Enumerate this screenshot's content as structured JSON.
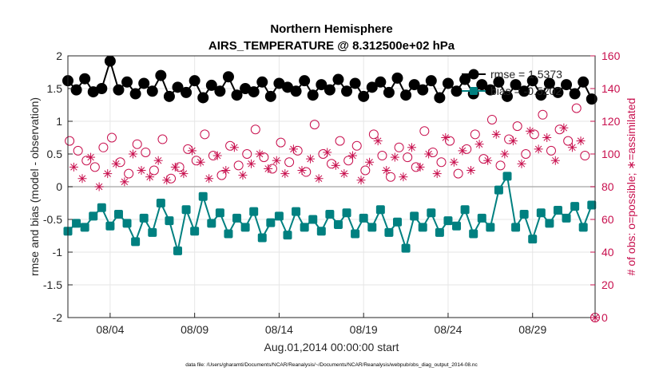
{
  "chart_data": {
    "type": "line",
    "title": "Northern Hemisphere",
    "subtitle": "AIRS_TEMPERATURE @ 8.312500e+02 hPa",
    "xlabel": "Aug.01,2014 00:00:00 start",
    "ylabel": "rmse and bias (model - observation)",
    "y2label": "# of obs: o=possible; ∗=assimilated",
    "footer": "data file: /Users/gharamti/Documents/NCAR/Reanalysis/~/Documents/NCAR/Reanalysis/webpub/obs_diag_output_2014-08.nc",
    "xlim": [
      1.5,
      32.7
    ],
    "ylim": [
      -2,
      2
    ],
    "y2lim": [
      0,
      160
    ],
    "yticks": [
      "-2",
      "-1.5",
      "-1",
      "-0.5",
      "0",
      "0.5",
      "1",
      "1.5",
      "2"
    ],
    "y2ticks": [
      "0",
      "20",
      "40",
      "60",
      "80",
      "100",
      "120",
      "140",
      "160"
    ],
    "xticks": [
      {
        "day": 4,
        "label": "08/04"
      },
      {
        "day": 9,
        "label": "08/09"
      },
      {
        "day": 14,
        "label": "08/14"
      },
      {
        "day": 19,
        "label": "08/19"
      },
      {
        "day": 24,
        "label": "08/24"
      },
      {
        "day": 29,
        "label": "08/29"
      }
    ],
    "legend": [
      {
        "label": "rmse = 1.5373",
        "color": "#000000",
        "marker": "circle"
      },
      {
        "label": "bias = -0.5202",
        "color": "#008080",
        "marker": "square"
      }
    ],
    "colors": {
      "rmse": "#000000",
      "bias": "#008080",
      "obs": "#c8104e",
      "zero_line": "#b3b3b3"
    },
    "series": [
      {
        "name": "rmse",
        "axis": "left",
        "x": [
          1.5,
          2.0,
          2.5,
          3.0,
          3.5,
          4.0,
          4.5,
          5.0,
          5.5,
          6.0,
          6.5,
          7.0,
          7.5,
          8.0,
          8.5,
          9.0,
          9.5,
          10.0,
          10.5,
          11.0,
          11.5,
          12.0,
          12.5,
          13.0,
          13.5,
          14.0,
          14.5,
          15.0,
          15.5,
          16.0,
          16.5,
          17.0,
          17.5,
          18.0,
          18.5,
          19.0,
          19.5,
          20.0,
          20.5,
          21.0,
          21.5,
          22.0,
          22.5,
          23.0,
          23.5,
          24.0,
          24.5,
          25.0,
          25.5,
          26.0,
          26.5,
          27.0,
          27.5,
          28.0,
          28.5,
          29.0,
          29.5,
          30.0,
          30.5,
          31.0,
          31.5,
          32.0,
          32.5
        ],
        "values": [
          1.62,
          1.48,
          1.65,
          1.45,
          1.5,
          1.92,
          1.48,
          1.6,
          1.42,
          1.58,
          1.46,
          1.7,
          1.38,
          1.52,
          1.44,
          1.62,
          1.36,
          1.55,
          1.46,
          1.68,
          1.4,
          1.5,
          1.45,
          1.6,
          1.38,
          1.58,
          1.52,
          1.46,
          1.62,
          1.4,
          1.56,
          1.48,
          1.64,
          1.46,
          1.58,
          1.38,
          1.52,
          1.6,
          1.44,
          1.66,
          1.4,
          1.56,
          1.48,
          1.62,
          1.36,
          1.58,
          1.46,
          1.64,
          1.42,
          1.56,
          1.48,
          1.6,
          1.38,
          1.56,
          1.46,
          1.62,
          1.4,
          1.58,
          1.44,
          1.56,
          1.42,
          1.6,
          1.34
        ]
      },
      {
        "name": "bias",
        "axis": "left",
        "x": [
          1.5,
          2.0,
          2.5,
          3.0,
          3.5,
          4.0,
          4.5,
          5.0,
          5.5,
          6.0,
          6.5,
          7.0,
          7.5,
          8.0,
          8.5,
          9.0,
          9.5,
          10.0,
          10.5,
          11.0,
          11.5,
          12.0,
          12.5,
          13.0,
          13.5,
          14.0,
          14.5,
          15.0,
          15.5,
          16.0,
          16.5,
          17.0,
          17.5,
          18.0,
          18.5,
          19.0,
          19.5,
          20.0,
          20.5,
          21.0,
          21.5,
          22.0,
          22.5,
          23.0,
          23.5,
          24.0,
          24.5,
          25.0,
          25.5,
          26.0,
          26.5,
          27.0,
          27.5,
          28.0,
          28.5,
          29.0,
          29.5,
          30.0,
          30.5,
          31.0,
          31.5,
          32.0,
          32.5
        ],
        "values": [
          -0.68,
          -0.56,
          -0.62,
          -0.45,
          -0.32,
          -0.6,
          -0.42,
          -0.56,
          -0.84,
          -0.48,
          -0.7,
          -0.25,
          -0.52,
          -0.98,
          -0.35,
          -0.68,
          -0.15,
          -0.56,
          -0.4,
          -0.72,
          -0.48,
          -0.62,
          -0.38,
          -0.78,
          -0.55,
          -0.45,
          -0.74,
          -0.38,
          -0.62,
          -0.5,
          -0.68,
          -0.42,
          -0.58,
          -0.4,
          -0.72,
          -0.48,
          -0.62,
          -0.35,
          -0.7,
          -0.54,
          -0.94,
          -0.45,
          -0.62,
          -0.4,
          -0.7,
          -0.52,
          -0.6,
          -0.35,
          -0.72,
          -0.48,
          -0.62,
          -0.05,
          0.16,
          -0.62,
          -0.42,
          -0.8,
          -0.4,
          -0.56,
          -0.36,
          -0.48,
          -0.3,
          -0.62,
          -0.28
        ]
      },
      {
        "name": "possible",
        "axis": "right",
        "x": [
          1.6,
          2.1,
          2.6,
          3.1,
          3.6,
          4.1,
          4.6,
          5.1,
          5.6,
          6.1,
          6.6,
          7.1,
          7.6,
          8.1,
          8.6,
          9.1,
          9.6,
          10.1,
          10.6,
          11.1,
          11.6,
          12.1,
          12.6,
          13.1,
          13.6,
          14.1,
          14.6,
          15.1,
          15.6,
          16.1,
          16.6,
          17.1,
          17.6,
          18.1,
          18.6,
          19.1,
          19.6,
          20.1,
          20.6,
          21.1,
          21.6,
          22.1,
          22.6,
          23.1,
          23.6,
          24.1,
          24.6,
          25.1,
          25.6,
          26.1,
          26.6,
          27.1,
          27.6,
          28.1,
          28.6,
          29.1,
          29.6,
          30.1,
          30.6,
          31.1,
          31.6,
          32.1
        ],
        "values": [
          108,
          102,
          96,
          92,
          104,
          110,
          95,
          88,
          106,
          101,
          90,
          109,
          85,
          92,
          103,
          96,
          112,
          99,
          87,
          105,
          93,
          100,
          115,
          98,
          91,
          107,
          95,
          102,
          89,
          118,
          100,
          94,
          108,
          96,
          105,
          90,
          112,
          99,
          86,
          104,
          98,
          92,
          114,
          101,
          95,
          108,
          88,
          103,
          112,
          97,
          121,
          93,
          109,
          117,
          100,
          112,
          124,
          102,
          115,
          108,
          128,
          99
        ]
      },
      {
        "name": "assimilated",
        "axis": "right",
        "x": [
          1.85,
          2.35,
          2.85,
          3.35,
          3.85,
          4.35,
          4.85,
          5.35,
          5.85,
          6.35,
          6.85,
          7.35,
          7.85,
          8.35,
          8.85,
          9.35,
          9.85,
          10.35,
          10.85,
          11.35,
          11.85,
          12.35,
          12.85,
          13.35,
          13.85,
          14.35,
          14.85,
          15.35,
          15.85,
          16.35,
          16.85,
          17.35,
          17.85,
          18.35,
          18.85,
          19.35,
          19.85,
          20.35,
          20.85,
          21.35,
          21.85,
          22.35,
          22.85,
          23.35,
          23.85,
          24.35,
          24.85,
          25.35,
          25.85,
          26.35,
          26.85,
          27.35,
          27.85,
          28.35,
          28.85,
          29.35,
          29.85,
          30.35,
          30.85,
          31.35,
          31.85
        ],
        "values": [
          92,
          85,
          98,
          80,
          88,
          94,
          83,
          100,
          90,
          86,
          96,
          84,
          92,
          88,
          102,
          95,
          85,
          99,
          90,
          104,
          87,
          94,
          100,
          91,
          96,
          88,
          103,
          90,
          97,
          85,
          101,
          93,
          88,
          99,
          84,
          95,
          108,
          90,
          98,
          86,
          104,
          92,
          100,
          88,
          110,
          95,
          102,
          90,
          106,
          96,
          112,
          100,
          108,
          94,
          114,
          103,
          110,
          96,
          116,
          104,
          108
        ]
      }
    ]
  }
}
